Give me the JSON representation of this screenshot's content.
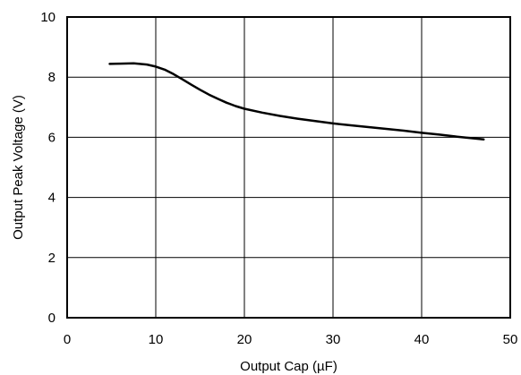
{
  "chart_data": {
    "type": "line",
    "title": "",
    "xlabel": "Output Cap (µF)",
    "ylabel": "Output Peak Voltage (V)",
    "xlim": [
      0,
      50
    ],
    "ylim": [
      0,
      10
    ],
    "xticks": [
      0,
      10,
      20,
      30,
      40,
      50
    ],
    "yticks": [
      0,
      2,
      4,
      6,
      8,
      10
    ],
    "grid": true,
    "legend": "none",
    "series": [
      {
        "x": [
          4.8,
          6,
          7.5,
          9,
          10,
          11,
          12,
          13,
          14,
          15,
          16,
          17,
          18,
          19,
          20,
          22,
          24,
          26,
          28,
          30,
          32,
          34,
          36,
          38,
          40,
          42,
          44,
          45,
          47
        ],
        "y": [
          8.44,
          8.45,
          8.46,
          8.42,
          8.35,
          8.25,
          8.1,
          7.93,
          7.75,
          7.58,
          7.42,
          7.28,
          7.15,
          7.04,
          6.95,
          6.82,
          6.71,
          6.62,
          6.54,
          6.46,
          6.4,
          6.34,
          6.28,
          6.22,
          6.15,
          6.09,
          6.02,
          5.99,
          5.93
        ]
      }
    ]
  }
}
